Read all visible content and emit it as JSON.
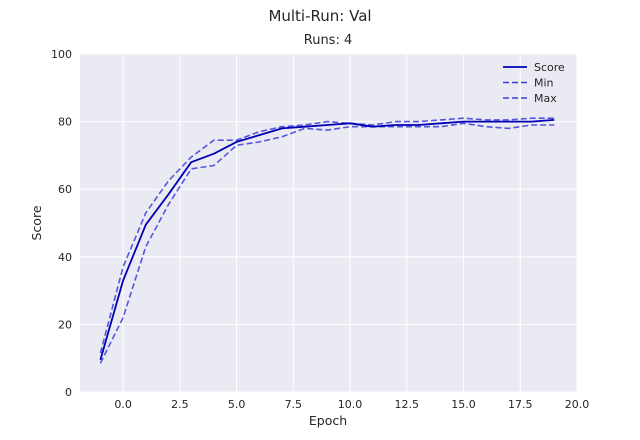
{
  "chart_data": {
    "type": "line",
    "title": "Multi-Run: Val",
    "subtitle": "Runs: 4",
    "xlabel": "Epoch",
    "ylabel": "Score",
    "xlim": [
      -1.9,
      20
    ],
    "ylim": [
      0,
      100
    ],
    "xticks": [
      0.0,
      2.5,
      5.0,
      7.5,
      10.0,
      12.5,
      15.0,
      17.5,
      20.0
    ],
    "xtick_labels": [
      "0.0",
      "2.5",
      "5.0",
      "7.5",
      "10.0",
      "12.5",
      "15.0",
      "17.5",
      "20.0"
    ],
    "yticks": [
      0,
      20,
      40,
      60,
      80,
      100
    ],
    "ytick_labels": [
      "0",
      "20",
      "40",
      "60",
      "80",
      "100"
    ],
    "grid": true,
    "legend_position": "top-right",
    "x": [
      -1,
      0,
      1,
      2,
      3,
      4,
      5,
      6,
      7,
      8,
      9,
      10,
      11,
      12,
      13,
      14,
      15,
      16,
      17,
      18,
      19
    ],
    "series": [
      {
        "name": "Score",
        "style": "solid",
        "color": "#0000b4",
        "values": [
          9.5,
          33.0,
          49.5,
          58.5,
          68.0,
          70.5,
          74.0,
          76.0,
          78.0,
          78.5,
          79.0,
          79.5,
          78.5,
          79.0,
          79.0,
          79.5,
          80.0,
          80.0,
          80.0,
          80.0,
          80.5
        ]
      },
      {
        "name": "Min",
        "style": "dashed",
        "color": "#3c3cdc",
        "values": [
          8.5,
          22.0,
          43.0,
          55.5,
          66.0,
          67.0,
          73.0,
          74.0,
          75.5,
          78.0,
          77.5,
          78.5,
          78.5,
          78.5,
          78.5,
          78.5,
          79.5,
          78.5,
          78.0,
          79.0,
          79.0
        ]
      },
      {
        "name": "Max",
        "style": "dashed",
        "color": "#3c3cdc",
        "values": [
          11.5,
          37.0,
          53.0,
          62.5,
          69.5,
          74.5,
          74.5,
          77.0,
          78.5,
          79.0,
          80.0,
          79.5,
          79.0,
          80.0,
          80.0,
          80.5,
          81.0,
          80.5,
          80.5,
          81.0,
          81.0
        ]
      }
    ]
  },
  "style": {
    "plot_background": "#eaeaf2",
    "grid_color": "#ffffff"
  }
}
